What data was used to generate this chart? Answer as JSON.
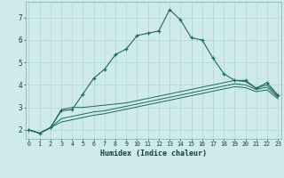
{
  "xlabel": "Humidex (Indice chaleur)",
  "background_color": "#ceeaea",
  "grid_color": "#b8d8d8",
  "line_color": "#1a6b5a",
  "x_ticks": [
    0,
    1,
    2,
    3,
    4,
    5,
    6,
    7,
    8,
    9,
    10,
    11,
    12,
    13,
    14,
    15,
    16,
    17,
    18,
    19,
    20,
    21,
    22,
    23
  ],
  "y_ticks": [
    2,
    3,
    4,
    5,
    6,
    7
  ],
  "ylim": [
    1.6,
    7.7
  ],
  "xlim": [
    -0.3,
    23.3
  ],
  "series": [
    [
      2.0,
      1.85,
      2.1,
      2.85,
      2.9,
      3.6,
      4.3,
      4.7,
      5.35,
      5.6,
      6.2,
      6.3,
      6.4,
      7.35,
      6.9,
      6.1,
      6.0,
      5.2,
      4.5,
      4.2,
      4.2,
      3.85,
      4.1,
      3.55
    ],
    [
      2.0,
      1.85,
      2.1,
      2.9,
      3.0,
      3.0,
      3.05,
      3.1,
      3.15,
      3.2,
      3.3,
      3.4,
      3.5,
      3.6,
      3.7,
      3.8,
      3.9,
      4.0,
      4.1,
      4.2,
      4.15,
      3.85,
      4.0,
      3.5
    ],
    [
      2.0,
      1.85,
      2.1,
      2.5,
      2.6,
      2.7,
      2.8,
      2.85,
      2.95,
      3.05,
      3.15,
      3.25,
      3.35,
      3.45,
      3.55,
      3.65,
      3.75,
      3.85,
      3.95,
      4.05,
      4.0,
      3.8,
      3.9,
      3.45
    ],
    [
      2.0,
      1.85,
      2.1,
      2.35,
      2.45,
      2.55,
      2.65,
      2.72,
      2.82,
      2.92,
      3.02,
      3.12,
      3.22,
      3.32,
      3.42,
      3.52,
      3.62,
      3.72,
      3.82,
      3.92,
      3.88,
      3.7,
      3.78,
      3.38
    ]
  ]
}
